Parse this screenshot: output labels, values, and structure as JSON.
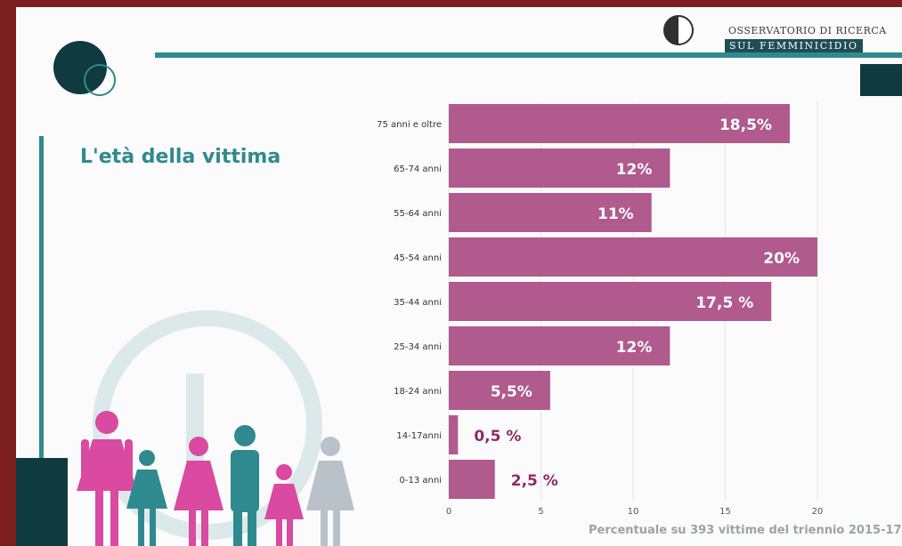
{
  "header": {
    "logo_line1": "OSSERVATORIO DI RICERCA",
    "logo_line2": "SUL FEMMINICIDIO"
  },
  "colors": {
    "bar": "#b05a8d",
    "teal": "#2f8a8f",
    "dark_teal": "#0f3a40",
    "magenta": "#d94aa0",
    "grey_figure": "#b9c2c8"
  },
  "chart_data": {
    "type": "bar",
    "orientation": "horizontal",
    "title": "L'età della vittima",
    "footnote": "Percentuale su 393 vittime del triennio 2015-17",
    "categories": [
      "75 anni e oltre",
      "65-74 anni",
      "55-64 anni",
      "45-54 anni",
      "35-44 anni",
      "25-34 anni",
      "18-24 anni",
      "14-17anni",
      "0-13 anni"
    ],
    "values": [
      18.5,
      12,
      11,
      20,
      17.5,
      12,
      5.5,
      0.5,
      2.5
    ],
    "data_labels": [
      "18,5%",
      "12%",
      "11%",
      "20%",
      "17,5 %",
      "12%",
      "5,5%",
      "0,5 %",
      "2,5 %"
    ],
    "xlim": [
      0,
      20
    ],
    "xticks": [
      "0",
      "5",
      "10",
      "15",
      "20"
    ],
    "grid": true
  }
}
